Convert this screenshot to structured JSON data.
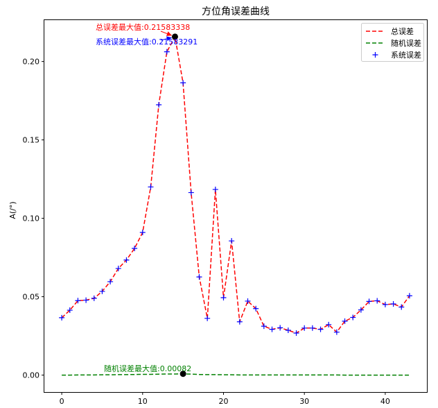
{
  "chart_data": {
    "type": "line",
    "title": "方位角误差曲线",
    "xlabel": "",
    "ylabel": "A(/°)",
    "xlim": [
      -2.15,
      45.15
    ],
    "ylim": [
      -0.0108,
      0.2264
    ],
    "xticks": [
      0,
      10,
      20,
      30,
      40
    ],
    "yticks": [
      0.0,
      0.05,
      0.1,
      0.15,
      0.2
    ],
    "ytick_labels": [
      "0.00",
      "0.05",
      "0.10",
      "0.15",
      "0.20"
    ],
    "grid": false,
    "legend_position": "top-right",
    "x": [
      0,
      1,
      2,
      3,
      4,
      5,
      6,
      7,
      8,
      9,
      10,
      11,
      12,
      13,
      14,
      15,
      16,
      17,
      18,
      19,
      20,
      21,
      22,
      23,
      24,
      25,
      26,
      27,
      28,
      29,
      30,
      31,
      32,
      33,
      34,
      35,
      36,
      37,
      38,
      39,
      40,
      41,
      42,
      43
    ],
    "series": [
      {
        "name": "总误差",
        "style": "dashed",
        "color": "#ff0000",
        "values": [
          0.0366,
          0.0414,
          0.0475,
          0.0478,
          0.049,
          0.0534,
          0.0596,
          0.068,
          0.0734,
          0.0808,
          0.091,
          0.12,
          0.1724,
          0.2062,
          0.2158,
          0.1864,
          0.1164,
          0.0626,
          0.0362,
          0.1184,
          0.0494,
          0.0856,
          0.034,
          0.0472,
          0.0424,
          0.0312,
          0.0292,
          0.0302,
          0.0286,
          0.0268,
          0.03,
          0.03,
          0.0292,
          0.0322,
          0.0274,
          0.0344,
          0.0368,
          0.0416,
          0.047,
          0.0474,
          0.045,
          0.0454,
          0.0434,
          0.0506
        ]
      },
      {
        "name": "随机误差",
        "style": "dashed",
        "color": "#008000",
        "values": [
          0.0,
          0.0,
          0.0001,
          0.0001,
          0.0001,
          0.0002,
          0.0002,
          0.0003,
          0.0003,
          0.0004,
          0.0005,
          0.0005,
          0.0006,
          0.0007,
          0.0007,
          0.0008,
          0.0006,
          0.0004,
          0.0003,
          0.0003,
          0.0002,
          0.0002,
          0.0001,
          0.0001,
          0.0001,
          0.0001,
          0.0001,
          0.0001,
          0.0001,
          0.0001,
          0.0001,
          0.0001,
          0.0001,
          0.0001,
          0.0001,
          0.0,
          0.0,
          0.0,
          0.0,
          0.0,
          0.0,
          0.0,
          0.0,
          0.0
        ]
      },
      {
        "name": "系统误差",
        "style": "marker-plus",
        "color": "#0000ff",
        "values": [
          0.0366,
          0.0414,
          0.0475,
          0.0478,
          0.049,
          0.0534,
          0.0596,
          0.068,
          0.0734,
          0.0808,
          0.091,
          0.12,
          0.1724,
          0.2062,
          0.2158,
          0.1864,
          0.1164,
          0.0626,
          0.0362,
          0.1184,
          0.0494,
          0.0856,
          0.034,
          0.0472,
          0.0424,
          0.0312,
          0.0292,
          0.0302,
          0.0286,
          0.0268,
          0.03,
          0.03,
          0.0292,
          0.0322,
          0.0274,
          0.0344,
          0.0368,
          0.0416,
          0.047,
          0.0474,
          0.045,
          0.0454,
          0.0434,
          0.0506
        ]
      }
    ],
    "annotations": [
      {
        "text": "总误差最大值:0.21583338",
        "color": "#ff0000",
        "x": 14,
        "y": 0.21583338,
        "arrow": true
      },
      {
        "text": "系统误差最大值:0.21583291",
        "color": "#0000ff",
        "x": 14,
        "y": 0.21583291,
        "arrow": true
      },
      {
        "text": "随机误差最大值:0.00082",
        "color": "#008000",
        "x": 15,
        "y": 0.00082,
        "arrow": false
      }
    ],
    "markers": [
      {
        "x": 14,
        "y": 0.21583338,
        "color": "#000000"
      },
      {
        "x": 15,
        "y": 0.00082,
        "color": "#000000"
      }
    ]
  }
}
